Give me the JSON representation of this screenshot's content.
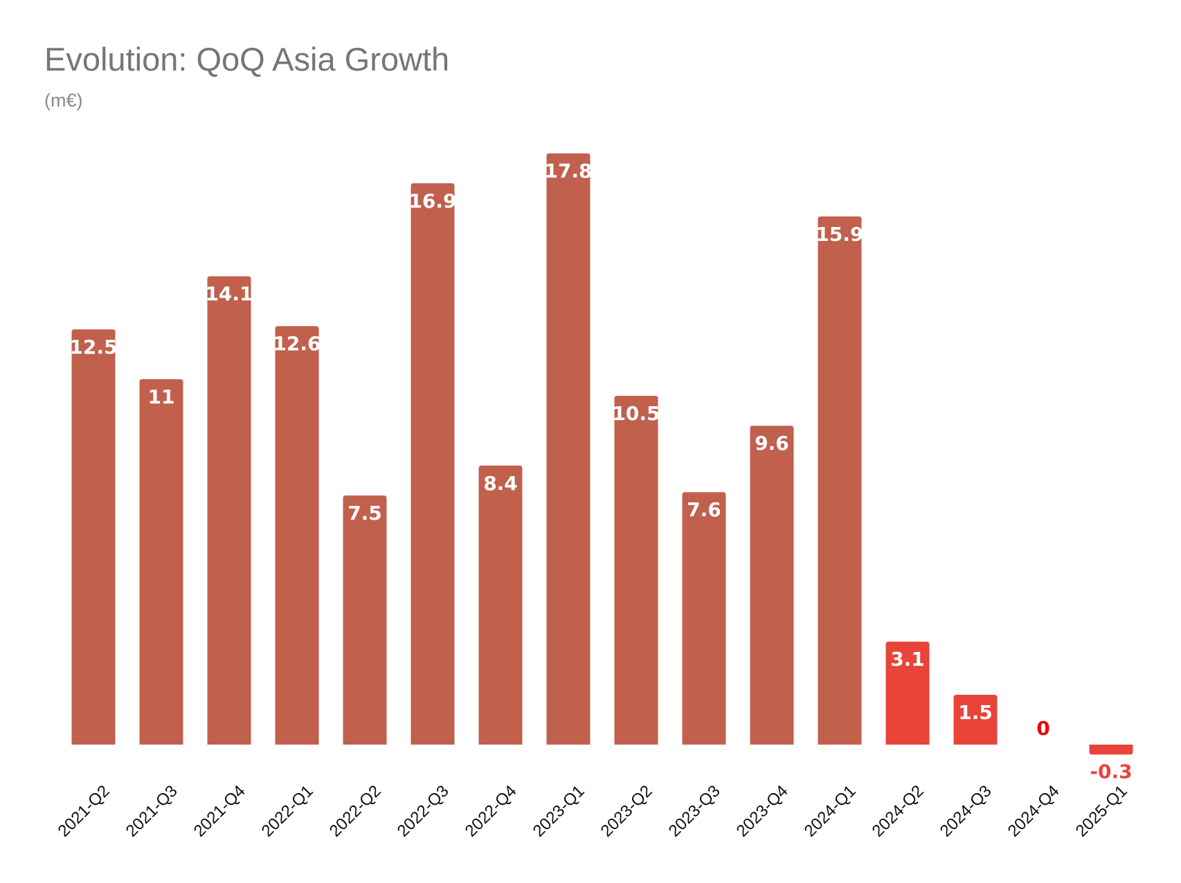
{
  "chart_data": {
    "type": "bar",
    "title": "Evolution: QoQ Asia Growth",
    "subtitle": "(m€)",
    "categories": [
      "2021-Q2",
      "2021-Q3",
      "2021-Q4",
      "2022-Q1",
      "2022-Q2",
      "2022-Q3",
      "2022-Q4",
      "2023-Q1",
      "2023-Q2",
      "2023-Q3",
      "2023-Q4",
      "2024-Q1",
      "2024-Q2",
      "2024-Q3",
      "2024-Q4",
      "2025-Q1"
    ],
    "values": [
      12.5,
      11,
      14.1,
      12.6,
      7.5,
      16.9,
      8.4,
      17.8,
      10.5,
      7.6,
      9.6,
      15.9,
      3.1,
      1.5,
      0,
      -0.3
    ],
    "value_labels": [
      "12.5",
      "11",
      "14.1",
      "12.6",
      "7.5",
      "16.9",
      "8.4",
      "17.8",
      "10.5",
      "7.6",
      "9.6",
      "15.9",
      "3.1",
      "1.5",
      "0",
      "-0.3"
    ],
    "highlight_from_index": 12,
    "ylim": [
      -0.3,
      17.8
    ],
    "grid": false,
    "legend": "none",
    "colors": {
      "bar": "#c0604d",
      "bar_highlight": "#e8443a",
      "label_inside": "#ffffff",
      "label_outside_zero": "#e8000b",
      "label_outside_negative": "#e8443a",
      "title": "#767676",
      "subtitle": "#8a8a8a"
    }
  }
}
